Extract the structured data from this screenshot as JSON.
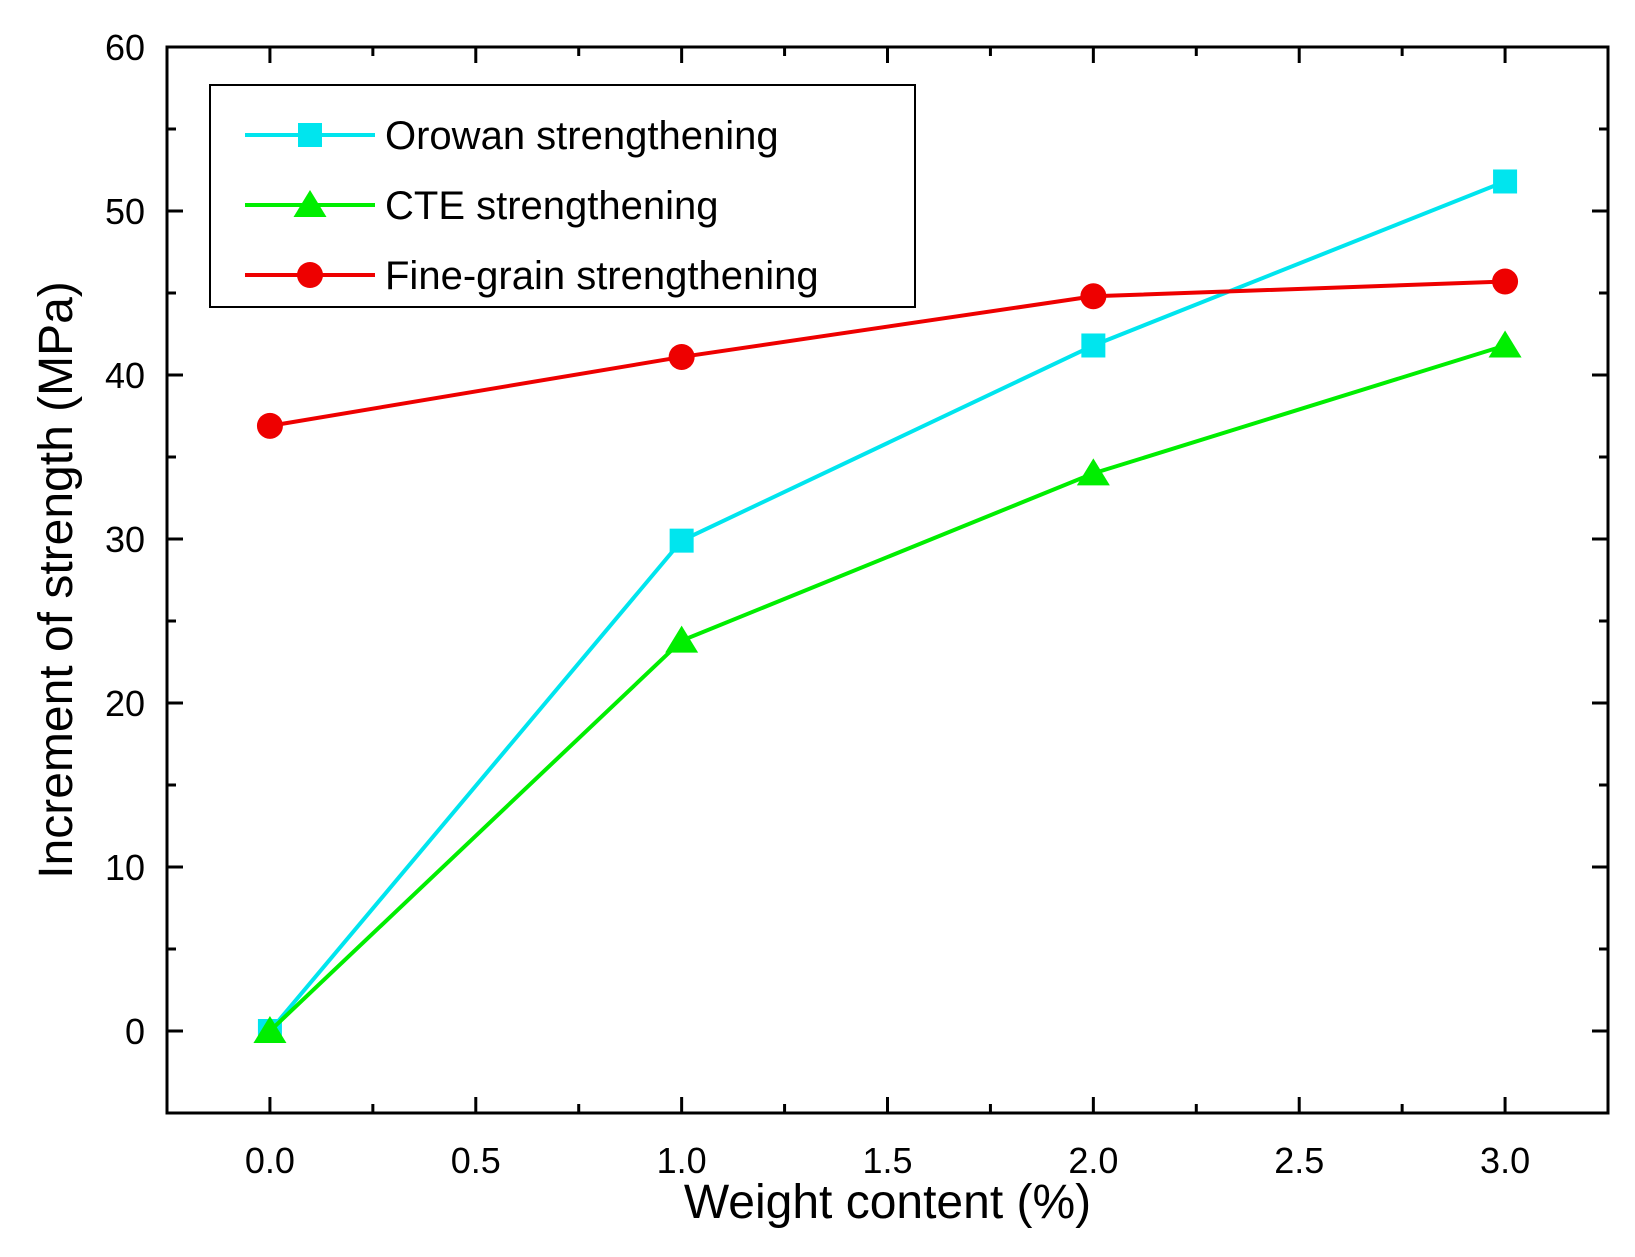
{
  "chart_data": {
    "type": "line",
    "xlabel": "Weight content (%)",
    "ylabel": "Increment of strength (MPa)",
    "xlim": [
      -0.25,
      3.25
    ],
    "ylim": [
      -5,
      60
    ],
    "xticks": [
      "0.0",
      "0.5",
      "1.0",
      "1.5",
      "2.0",
      "2.5",
      "3.0"
    ],
    "yticks": [
      "0",
      "10",
      "20",
      "30",
      "40",
      "50",
      "60"
    ],
    "x": [
      0.0,
      1.0,
      2.0,
      3.0
    ],
    "legend_position": "top-left",
    "series": [
      {
        "name": "Orowan strengthening",
        "marker": "square",
        "color": "#00e5ee",
        "values": [
          0,
          29.9,
          41.8,
          51.8
        ]
      },
      {
        "name": "CTE strengthening",
        "marker": "triangle",
        "color": "#00ee00",
        "values": [
          0,
          23.8,
          34.0,
          41.8
        ]
      },
      {
        "name": "Fine-grain strengthening",
        "marker": "circle",
        "color": "#ee0000",
        "values": [
          36.9,
          41.1,
          44.8,
          45.7
        ]
      }
    ]
  }
}
